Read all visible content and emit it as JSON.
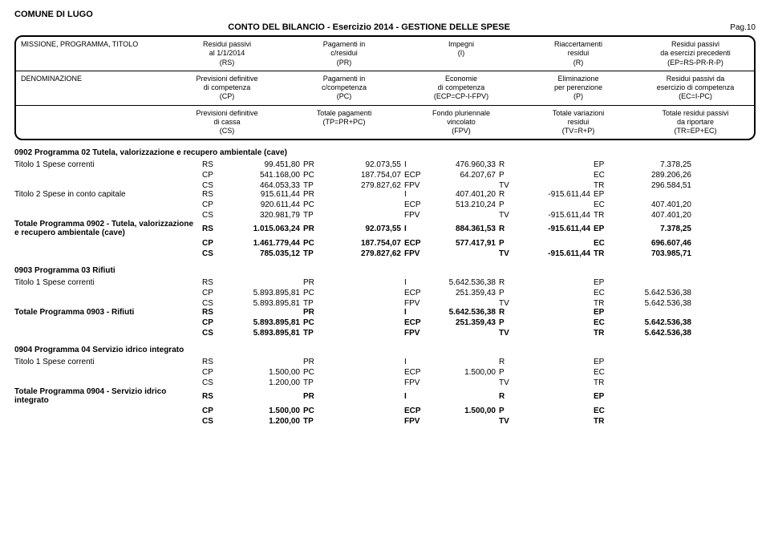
{
  "header": {
    "comune": "COMUNE DI LUGO",
    "report_title": "CONTO DEL BILANCIO   -   Esercizio 2014   -   GESTIONE DELLE SPESE",
    "page": "Pag.10",
    "left1": "MISSIONE, PROGRAMMA, TITOLO",
    "left2": "DENOMINAZIONE",
    "row1": {
      "c1": "Residui passivi\nal 1/1/2014\n(RS)",
      "c2": "Pagamenti in\nc/residui\n(PR)",
      "c3": "Impegni\n(I)",
      "c4": "Riaccertamenti\nresidui\n(R)",
      "c5": "Residui passivi\nda esercizi precedenti\n(EP=RS-PR-R-P)"
    },
    "row2": {
      "c1": "Previsioni definitive\ndi competenza\n(CP)",
      "c2": "Pagamenti in\nc/competenza\n(PC)",
      "c3": "Economie\ndi competenza\n(ECP=CP-I-FPV)",
      "c4": "Eliminazione\nper perenzione\n(P)",
      "c5": "Residui passivi da\nesercizio di competenza\n(EC=I-PC)"
    },
    "row3": {
      "c1": "Previsioni definitive\ndi cassa\n(CS)",
      "c2": "Totale pagamenti\n(TP=PR+PC)",
      "c3": "Fondo pluriennale\nvincolato\n(FPV)",
      "c4": "Totale variazioni\nresidui\n(TV=R+P)",
      "c5": "Totale residui passivi\nda riportare\n(TR=EP+EC)"
    }
  },
  "codes": {
    "RS": "RS",
    "PR": "PR",
    "I": "I",
    "R": "R",
    "EP": "EP",
    "CP": "CP",
    "PC": "PC",
    "ECP": "ECP",
    "P": "P",
    "EC": "EC",
    "CS": "CS",
    "TP": "TP",
    "FPV": "FPV",
    "TV": "TV",
    "TR": "TR"
  },
  "sections": [
    {
      "title": "0902      Programma 02 Tutela, valorizzazione e recupero ambientale (cave)",
      "bold": true,
      "rows": [
        {
          "label": "Titolo 1 Spese correnti",
          "bold": false,
          "lines": [
            {
              "RS": "99.451,80",
              "PR": "92.073,55",
              "I": "476.960,33",
              "R": "",
              "EP": "7.378,25"
            },
            {
              "CP": "541.168,00",
              "PC": "187.754,07",
              "ECP": "64.207,67",
              "P": "",
              "EC": "289.206,26"
            },
            {
              "CS": "464.053,33",
              "TP": "279.827,62",
              "FPV": "",
              "TV": "",
              "TR": "296.584,51"
            }
          ]
        },
        {
          "label": "Titolo 2 Spese in conto capitale",
          "bold": false,
          "lines": [
            {
              "RS": "915.611,44",
              "PR": "",
              "I": "407.401,20",
              "R": "-915.611,44",
              "EP": ""
            },
            {
              "CP": "920.611,44",
              "PC": "",
              "ECP": "513.210,24",
              "P": "",
              "EC": "407.401,20"
            },
            {
              "CS": "320.981,79",
              "TP": "",
              "FPV": "",
              "TV": "-915.611,44",
              "TR": "407.401,20"
            }
          ]
        },
        {
          "label": "Totale Programma 0902 - Tutela, valorizzazione e recupero ambientale (cave)",
          "bold": true,
          "lines": [
            {
              "RS": "1.015.063,24",
              "PR": "92.073,55",
              "I": "884.361,53",
              "R": "-915.611,44",
              "EP": "7.378,25"
            },
            {
              "CP": "1.461.779,44",
              "PC": "187.754,07",
              "ECP": "577.417,91",
              "P": "",
              "EC": "696.607,46"
            },
            {
              "CS": "785.035,12",
              "TP": "279.827,62",
              "FPV": "",
              "TV": "-915.611,44",
              "TR": "703.985,71"
            }
          ]
        }
      ]
    },
    {
      "title": "0903      Programma 03 Rifiuti",
      "bold": true,
      "rows": [
        {
          "label": "Titolo 1 Spese correnti",
          "bold": false,
          "lines": [
            {
              "RS": "",
              "PR": "",
              "I": "5.642.536,38",
              "R": "",
              "EP": ""
            },
            {
              "CP": "5.893.895,81",
              "PC": "",
              "ECP": "251.359,43",
              "P": "",
              "EC": "5.642.536,38"
            },
            {
              "CS": "5.893.895,81",
              "TP": "",
              "FPV": "",
              "TV": "",
              "TR": "5.642.536,38"
            }
          ]
        },
        {
          "label": "Totale Programma 0903 - Rifiuti",
          "bold": true,
          "lines": [
            {
              "RS": "",
              "PR": "",
              "I": "5.642.536,38",
              "R": "",
              "EP": ""
            },
            {
              "CP": "5.893.895,81",
              "PC": "",
              "ECP": "251.359,43",
              "P": "",
              "EC": "5.642.536,38"
            },
            {
              "CS": "5.893.895,81",
              "TP": "",
              "FPV": "",
              "TV": "",
              "TR": "5.642.536,38"
            }
          ]
        }
      ]
    },
    {
      "title": "0904      Programma 04 Servizio idrico integrato",
      "bold": true,
      "rows": [
        {
          "label": "Titolo 1 Spese correnti",
          "bold": false,
          "lines": [
            {
              "RS": "",
              "PR": "",
              "I": "",
              "R": "",
              "EP": ""
            },
            {
              "CP": "1.500,00",
              "PC": "",
              "ECP": "1.500,00",
              "P": "",
              "EC": ""
            },
            {
              "CS": "1.200,00",
              "TP": "",
              "FPV": "",
              "TV": "",
              "TR": ""
            }
          ]
        },
        {
          "label": "Totale Programma 0904 - Servizio idrico integrato",
          "bold": true,
          "lines": [
            {
              "RS": "",
              "PR": "",
              "I": "",
              "R": "",
              "EP": ""
            },
            {
              "CP": "1.500,00",
              "PC": "",
              "ECP": "1.500,00",
              "P": "",
              "EC": ""
            },
            {
              "CS": "1.200,00",
              "TP": "",
              "FPV": "",
              "TV": "",
              "TR": ""
            }
          ]
        }
      ]
    }
  ]
}
